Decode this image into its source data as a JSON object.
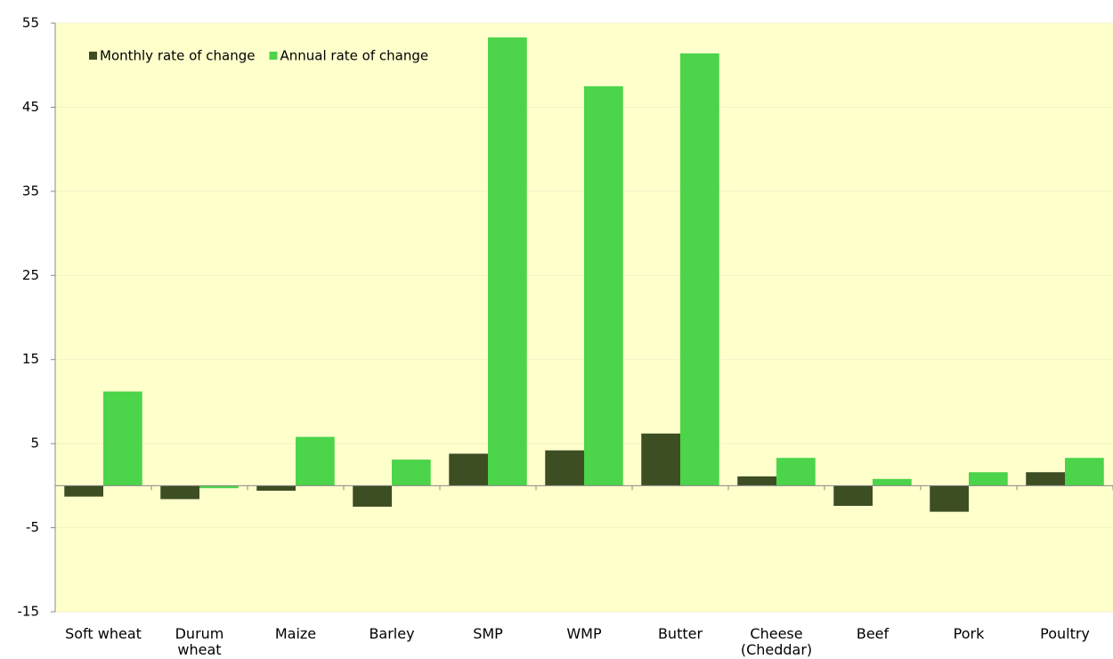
{
  "chart_data": {
    "type": "bar",
    "categories": [
      "Soft wheat",
      "Durum wheat",
      "Maize",
      "Barley",
      "SMP",
      "WMP",
      "Butter",
      "Cheese (Cheddar)",
      "Beef",
      "Pork",
      "Poultry"
    ],
    "series": [
      {
        "name": "Monthly rate of change",
        "color": "#3d4e23",
        "values": [
          -1.3,
          -1.6,
          -0.6,
          -2.5,
          3.8,
          4.2,
          6.2,
          1.1,
          -2.4,
          -3.1,
          1.6
        ]
      },
      {
        "name": "Annual rate of change",
        "color": "#4cd44a",
        "values": [
          11.2,
          -0.3,
          5.8,
          3.1,
          53.3,
          47.5,
          51.4,
          3.3,
          0.8,
          1.6,
          3.3
        ]
      }
    ],
    "ylim": [
      -15,
      55
    ],
    "yticks": [
      -15,
      -5,
      5,
      15,
      25,
      35,
      45,
      55
    ],
    "grid": true,
    "legend": "top-left"
  }
}
